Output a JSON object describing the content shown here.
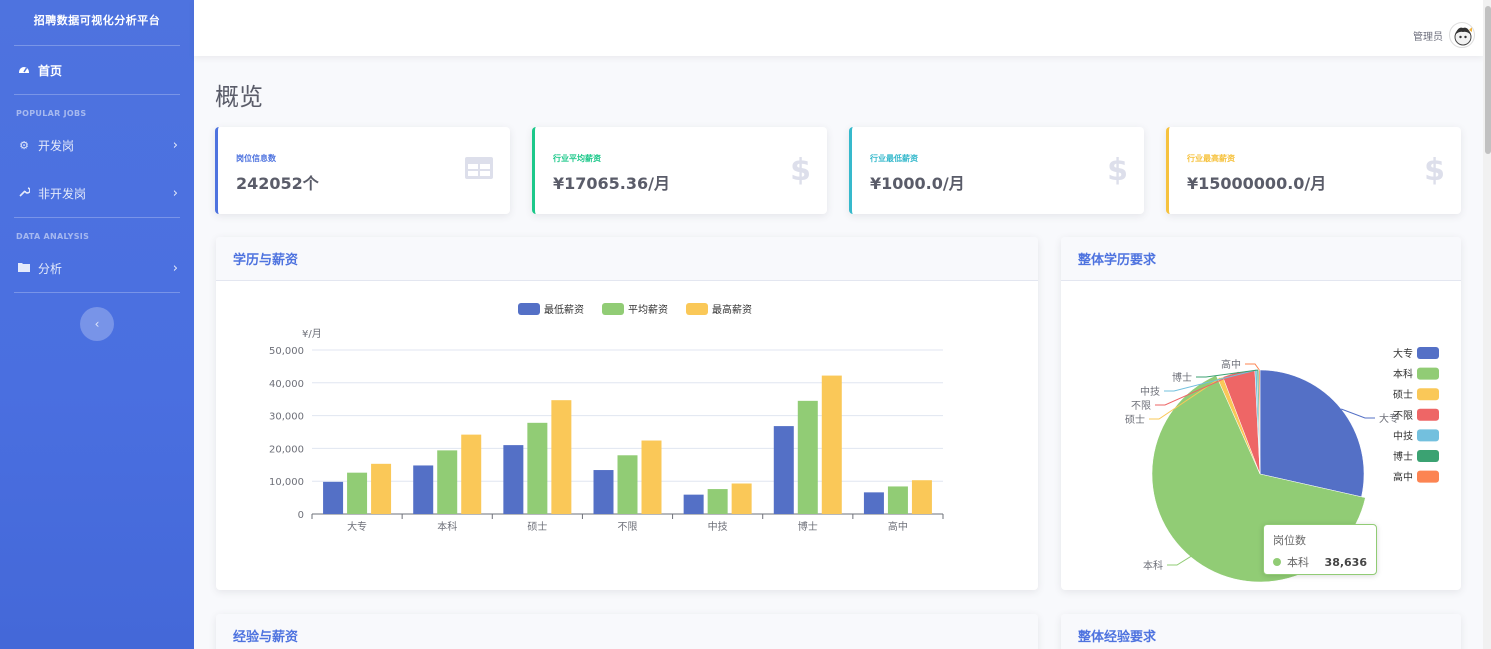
{
  "sidebar": {
    "brand": "招聘数据可视化分析平台",
    "home": "首页",
    "heading_jobs": "POPULAR JOBS",
    "dev_jobs": "开发岗",
    "nondev_jobs": "非开发岗",
    "heading_analysis": "DATA ANALYSIS",
    "analysis": "分析"
  },
  "topbar": {
    "user_name": "管理员"
  },
  "page_title": "概览",
  "stats": [
    {
      "label": "岗位信息数",
      "value": "242052个",
      "color": "#4e73df",
      "icon": "table-icon"
    },
    {
      "label": "行业平均薪资",
      "value": "¥17065.36/月",
      "color": "#1cc88a",
      "icon": "dollar-icon"
    },
    {
      "label": "行业最低薪资",
      "value": "¥1000.0/月",
      "color": "#36b9cc",
      "icon": "dollar-icon"
    },
    {
      "label": "行业最高薪资",
      "value": "¥15000000.0/月",
      "color": "#f6c23e",
      "icon": "dollar-icon"
    }
  ],
  "panels": {
    "edu_salary": "学历与薪资",
    "edu_overall": "整体学历要求",
    "exp_salary": "经验与薪资",
    "exp_overall": "整体经验要求"
  },
  "tooltip": {
    "title": "岗位数",
    "name": "本科",
    "value": "38,636"
  },
  "chart_data": [
    {
      "type": "bar",
      "ylabel": "¥/月",
      "ylim": [
        0,
        50000
      ],
      "yticks": [
        "0",
        "10,000",
        "20,000",
        "30,000",
        "40,000",
        "50,000"
      ],
      "categories": [
        "大专",
        "本科",
        "硕士",
        "不限",
        "中技",
        "博士",
        "高中"
      ],
      "series": [
        {
          "name": "最低薪资",
          "color": "#5470c6",
          "values": [
            9800,
            14800,
            21000,
            13400,
            5900,
            26800,
            6600
          ]
        },
        {
          "name": "平均薪资",
          "color": "#91cc75",
          "values": [
            12600,
            19400,
            27800,
            17900,
            7600,
            34500,
            8400
          ]
        },
        {
          "name": "最高薪资",
          "color": "#fac858",
          "values": [
            15300,
            24200,
            34700,
            22400,
            9300,
            42200,
            10300
          ]
        }
      ],
      "legend_position": "top"
    },
    {
      "type": "pie",
      "categories": [
        "大专",
        "本科",
        "硕士",
        "不限",
        "中技",
        "博士",
        "高中"
      ],
      "colors": [
        "#5470c6",
        "#91cc75",
        "#fac858",
        "#ee6666",
        "#73c0de",
        "#3ba272",
        "#fc8452"
      ],
      "values": [
        17000,
        38636,
        500,
        3000,
        200,
        150,
        120
      ],
      "legend_position": "right"
    }
  ]
}
